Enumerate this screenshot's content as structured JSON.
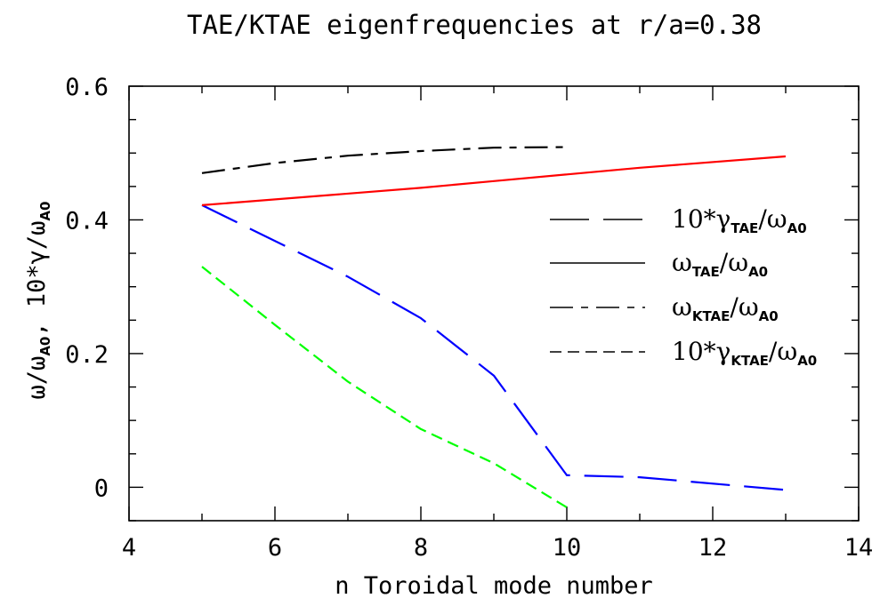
{
  "chart_data": {
    "type": "line",
    "title": "TAE/KTAE eigenfrequencies at r/a=0.38",
    "xlabel": "n Toroidal mode number",
    "ylabel": "ω/ωA0, 10*γ/ωA0",
    "xlim": [
      4,
      14
    ],
    "ylim": [
      -0.05,
      0.6
    ],
    "xticks": [
      4,
      6,
      8,
      10,
      12,
      14
    ],
    "xtick_labels": [
      "4",
      "6",
      "8",
      "10",
      "12",
      "14"
    ],
    "yticks": [
      0,
      0.2,
      0.4,
      0.6
    ],
    "ytick_labels": [
      "0",
      "0.2",
      "0.4",
      "0.6"
    ],
    "grid": false,
    "legend_placement": "right",
    "series": [
      {
        "name": "10*γTAE/ωA0",
        "color": "#0000ff",
        "dash": "long-dash",
        "x": [
          5,
          7,
          8,
          9,
          10,
          11,
          13
        ],
        "y": [
          0.422,
          0.315,
          0.253,
          0.167,
          0.018,
          0.015,
          -0.004
        ]
      },
      {
        "name": "ωTAE/ωA0",
        "color": "#ff0000",
        "dash": "solid",
        "x": [
          5,
          8,
          9,
          10,
          11,
          13
        ],
        "y": [
          0.422,
          0.448,
          0.458,
          0.468,
          0.478,
          0.495
        ]
      },
      {
        "name": "ωKTAE/ωA0",
        "color": "#000000",
        "dash": "dash-dot",
        "x": [
          5,
          6,
          7,
          8,
          9,
          10
        ],
        "y": [
          0.47,
          0.485,
          0.496,
          0.503,
          0.508,
          0.509
        ]
      },
      {
        "name": "10*γKTAE/ωA0",
        "color": "#00ff00",
        "dash": "short-dash",
        "x": [
          5,
          6,
          7,
          8,
          9,
          10
        ],
        "y": [
          0.33,
          0.243,
          0.158,
          0.087,
          0.036,
          -0.03
        ]
      }
    ],
    "legend": {
      "entries": [
        {
          "prefix": "10*",
          "sym": "γ",
          "sub": "TAE",
          "slash": "/",
          "sym2": "ω",
          "sub2": "A0",
          "dash": "long-dash"
        },
        {
          "prefix": "",
          "sym": "ω",
          "sub": "TAE",
          "slash": "/",
          "sym2": "ω",
          "sub2": "A0",
          "dash": "solid"
        },
        {
          "prefix": "",
          "sym": "ω",
          "sub": "KTAE",
          "slash": "/",
          "sym2": "ω",
          "sub2": "A0",
          "dash": "dash-dot"
        },
        {
          "prefix": "10*",
          "sym": "γ",
          "sub": "KTAE",
          "slash": "/",
          "sym2": "ω",
          "sub2": "A0",
          "dash": "short-dash"
        }
      ]
    }
  }
}
